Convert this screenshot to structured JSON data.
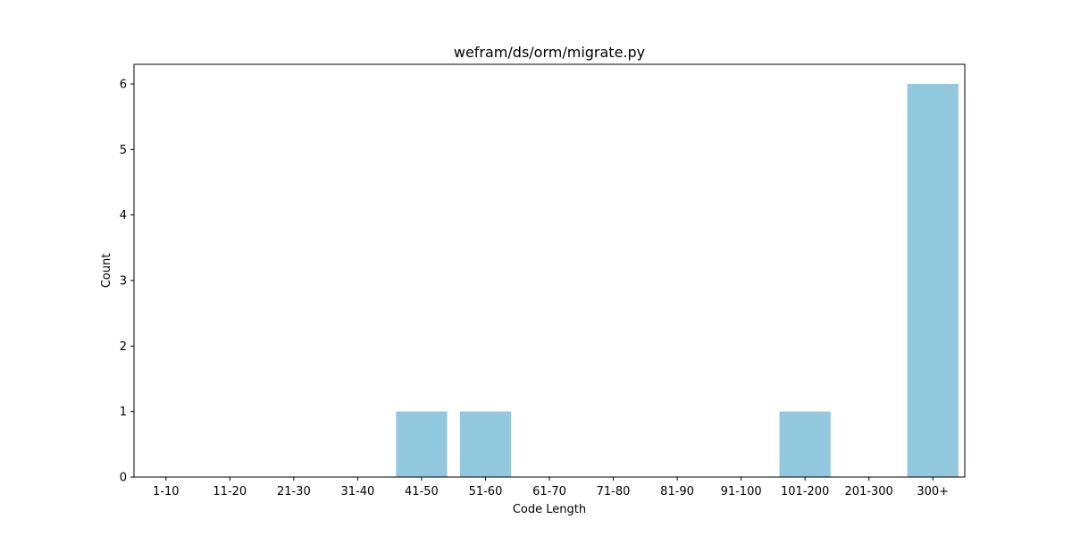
{
  "chart_data": {
    "type": "bar",
    "title": "wefram/ds/orm/migrate.py",
    "xlabel": "Code Length",
    "ylabel": "Count",
    "categories": [
      "1-10",
      "11-20",
      "21-30",
      "31-40",
      "41-50",
      "51-60",
      "61-70",
      "71-80",
      "81-90",
      "91-100",
      "101-200",
      "201-300",
      "300+"
    ],
    "values": [
      0,
      0,
      0,
      0,
      1,
      1,
      0,
      0,
      0,
      0,
      1,
      0,
      6
    ],
    "ylim": [
      0,
      6.3
    ],
    "yticks": [
      0,
      1,
      2,
      3,
      4,
      5,
      6
    ],
    "grid": false,
    "bar_color": "#92c9de"
  }
}
